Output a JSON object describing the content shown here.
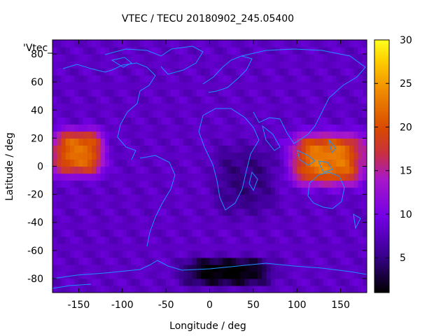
{
  "chart_data": {
    "type": "heatmap",
    "title": "VTEC / TECU 20180902_245.05400",
    "xlabel": "Longitude / deg",
    "ylabel": "Latitude / deg",
    "key_label": "'Vtec_",
    "xlim": [
      -180,
      180
    ],
    "ylim": [
      -90,
      90
    ],
    "xticks": [
      -150,
      -100,
      -50,
      0,
      50,
      100,
      150
    ],
    "yticks": [
      -80,
      -60,
      -40,
      -20,
      0,
      20,
      40,
      60,
      80
    ],
    "colorbar": {
      "min": 1,
      "max": 30,
      "ticks": [
        5,
        10,
        15,
        20,
        25,
        30
      ],
      "colormap": "gnuplot-pm3d-black-purple-red-yellow"
    },
    "background_level": 8,
    "features": [
      {
        "lon": -150,
        "lat": 10,
        "peak": 22,
        "sx": 28,
        "sy": 16
      },
      {
        "lon": 135,
        "lat": 5,
        "peak": 23,
        "sx": 40,
        "sy": 18
      },
      {
        "lon": 140,
        "lat": -2,
        "peak": 8,
        "sx": 12,
        "sy": 6
      },
      {
        "lon": 20,
        "lat": -75,
        "peak": -7,
        "sx": 50,
        "sy": 10
      },
      {
        "lon": 40,
        "lat": -10,
        "peak": -3,
        "sx": 35,
        "sy": 25
      }
    ],
    "map_overlay": "coastlines",
    "coastline_color": "#1e90ff"
  }
}
